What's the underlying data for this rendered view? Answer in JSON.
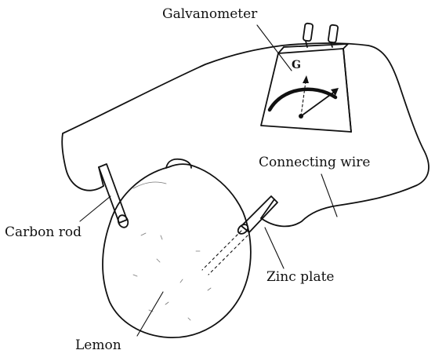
{
  "labels": {
    "galvanometer": "Galvanometer",
    "connecting_wire": "Connecting wire",
    "carbon_rod": "Carbon rod",
    "zinc_plate": "Zinc plate",
    "lemon": "Lemon"
  },
  "meter": {
    "symbol": "G"
  },
  "colors": {
    "ink": "#111111",
    "background": "#ffffff"
  }
}
